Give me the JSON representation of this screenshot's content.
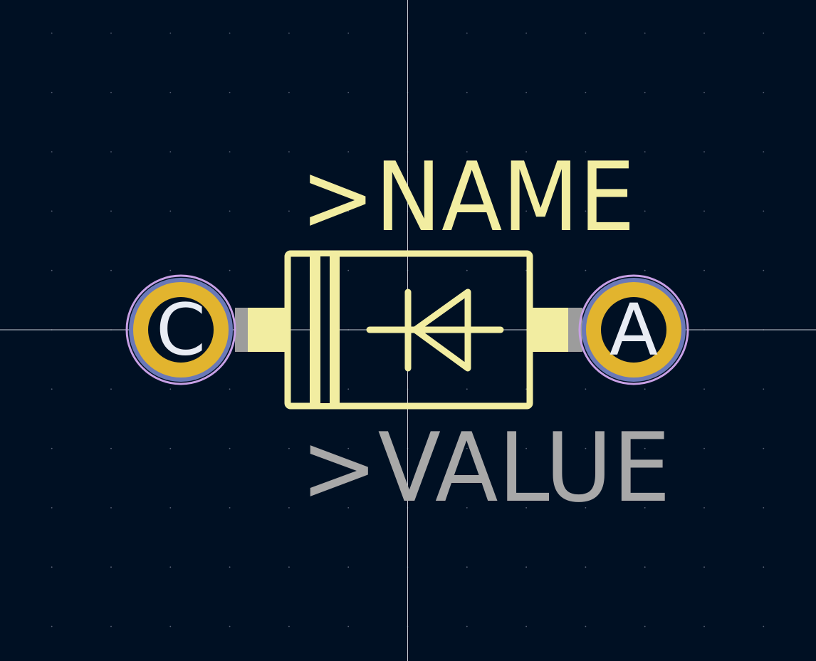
{
  "colors": {
    "background": "#001023",
    "grid_dot": "#5a6478",
    "crosshair": "#c8ccd4",
    "silkscreen": "#f2eda1",
    "value_text": "#a8a8a8",
    "pad_ring": "#e2b42e",
    "pad_outline": "#6a78b8",
    "pad_halo": "#c8a0e6",
    "pad_label": "#e8ecf4",
    "lead": "#9c9c9c"
  },
  "footprint": {
    "name_field": ">NAME",
    "value_field": ">VALUE"
  },
  "pads": [
    {
      "label": "C"
    },
    {
      "label": "A"
    }
  ]
}
